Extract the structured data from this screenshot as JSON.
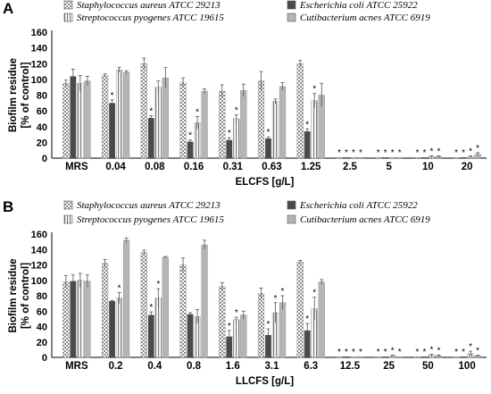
{
  "chart_data": [
    {
      "panel": "A",
      "type": "bar",
      "ylabel": "Biofilm residue [% of control]",
      "xlabel": "ELCFS [g/L]",
      "ylim": [
        0,
        160
      ],
      "yticks": [
        0,
        20,
        40,
        60,
        80,
        100,
        120,
        140,
        160
      ],
      "grid": false,
      "legend_position": "top",
      "categories": [
        "MRS",
        "0.04",
        "0.08",
        "0.16",
        "0.31",
        "0.63",
        "1.25",
        "2.5",
        "5",
        "10",
        "20"
      ],
      "series": [
        {
          "name": "Staphylococcus aureus ATCC 29213",
          "pattern": "checker",
          "values": [
            95,
            105,
            120,
            96,
            85,
            98,
            120,
            1,
            1,
            1,
            1
          ],
          "errors": [
            4,
            2,
            7,
            6,
            8,
            12,
            4,
            0,
            0,
            0,
            0
          ],
          "significant": [
            false,
            false,
            false,
            false,
            false,
            false,
            false,
            true,
            true,
            true,
            true
          ]
        },
        {
          "name": "Escherichia coli ATCC 25922",
          "pattern": "dark",
          "values": [
            104,
            70,
            51,
            21,
            23,
            25,
            34,
            1,
            1,
            1,
            1
          ],
          "errors": [
            9,
            4,
            3,
            2,
            3,
            2,
            3,
            0,
            0,
            0,
            0
          ],
          "significant": [
            false,
            true,
            true,
            true,
            true,
            true,
            true,
            true,
            true,
            true,
            true
          ]
        },
        {
          "name": "Streptococcus pyogenes ATCC 19615",
          "pattern": "vlines",
          "values": [
            95,
            112,
            90,
            45,
            50,
            72,
            73,
            1,
            1,
            2,
            2
          ],
          "errors": [
            10,
            3,
            8,
            8,
            5,
            3,
            9,
            0,
            0,
            1,
            1
          ],
          "significant": [
            false,
            false,
            false,
            true,
            true,
            false,
            true,
            true,
            true,
            true,
            true
          ]
        },
        {
          "name": "Cutibacterium acnes ATCC 6919",
          "pattern": "light",
          "values": [
            98,
            109,
            102,
            85,
            86,
            91,
            80,
            1,
            1,
            2,
            5
          ],
          "errors": [
            6,
            2,
            13,
            3,
            8,
            5,
            15,
            0,
            0,
            1,
            2
          ],
          "significant": [
            false,
            false,
            false,
            false,
            false,
            false,
            false,
            true,
            true,
            true,
            true
          ]
        }
      ]
    },
    {
      "panel": "B",
      "type": "bar",
      "ylabel": "Biofilm residue [% of control]",
      "xlabel": "LLCFS [g/L]",
      "ylim": [
        0,
        160
      ],
      "yticks": [
        0,
        20,
        40,
        60,
        80,
        100,
        120,
        140,
        160
      ],
      "grid": false,
      "legend_position": "top",
      "categories": [
        "MRS",
        "0.2",
        "0.4",
        "0.8",
        "1.6",
        "3.1",
        "6.3",
        "12.5",
        "25",
        "50",
        "100"
      ],
      "series": [
        {
          "name": "Staphylococcus aureus ATCC 29213",
          "pattern": "checker",
          "values": [
            98,
            122,
            136,
            120,
            92,
            83,
            124,
            1,
            1,
            1,
            1
          ],
          "errors": [
            8,
            5,
            3,
            9,
            5,
            7,
            2,
            0,
            0,
            0,
            0
          ],
          "significant": [
            false,
            false,
            false,
            false,
            false,
            false,
            false,
            true,
            true,
            true,
            true
          ]
        },
        {
          "name": "Escherichia coli ATCC 25922",
          "pattern": "dark",
          "values": [
            99,
            73,
            55,
            56,
            27,
            29,
            35,
            1,
            1,
            1,
            1
          ],
          "errors": [
            8,
            1,
            4,
            2,
            8,
            8,
            9,
            0,
            0,
            0,
            0
          ],
          "significant": [
            false,
            false,
            true,
            false,
            true,
            true,
            true,
            true,
            true,
            true,
            true
          ]
        },
        {
          "name": "Streptococcus pyogenes ATCC 19615",
          "pattern": "vlines",
          "values": [
            100,
            77,
            77,
            53,
            49,
            58,
            63,
            1,
            2,
            3,
            5
          ],
          "errors": [
            9,
            7,
            12,
            9,
            3,
            13,
            15,
            0,
            1,
            1,
            3
          ],
          "significant": [
            false,
            true,
            true,
            false,
            true,
            true,
            true,
            true,
            true,
            true,
            true
          ]
        },
        {
          "name": "Cutibacterium acnes ATCC 6919",
          "pattern": "light",
          "values": [
            99,
            152,
            130,
            146,
            55,
            71,
            98,
            1,
            1,
            2,
            2
          ],
          "errors": [
            8,
            3,
            1,
            6,
            5,
            9,
            3,
            0,
            0,
            1,
            1
          ],
          "significant": [
            false,
            false,
            false,
            false,
            false,
            true,
            false,
            true,
            true,
            true,
            true
          ]
        }
      ]
    }
  ],
  "colors": {
    "checker": "#a8a8a8",
    "dark": "#4a4a4a",
    "vlines": "#c8c8c8",
    "light": "#b5b5b5",
    "axis": "#000000"
  },
  "significance_marker": "*"
}
